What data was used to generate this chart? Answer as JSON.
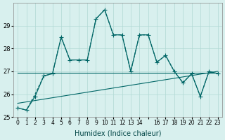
{
  "xlabel": "Humidex (Indice chaleur)",
  "ylabel": "",
  "background_color": "#d8f0ee",
  "grid_color": "#b0d8d4",
  "line_color": "#006666",
  "xlim": [
    -0.5,
    23.5
  ],
  "ylim": [
    25,
    30
  ],
  "yticks": [
    25,
    26,
    27,
    28,
    29
  ],
  "main_y": [
    25.4,
    25.3,
    25.9,
    26.8,
    26.9,
    28.5,
    27.5,
    27.5,
    27.5,
    29.3,
    29.7,
    28.6,
    28.6,
    27.0,
    28.6,
    28.6,
    27.4,
    27.7,
    27.0,
    26.5,
    26.9,
    25.9,
    27.0,
    26.9
  ],
  "reg_line_x": [
    0,
    23
  ],
  "reg_line_y": [
    25.6,
    27.0
  ],
  "mean_line_x": [
    0,
    23
  ],
  "mean_line_y": [
    26.95,
    26.95
  ],
  "dashed_y": [
    25.4,
    25.3,
    26.0,
    26.8,
    26.9,
    28.5,
    27.5,
    27.5,
    27.5,
    29.3,
    29.7,
    28.6,
    28.6,
    27.0,
    28.6,
    28.6,
    27.4,
    27.7,
    27.0,
    26.5,
    26.9,
    25.9,
    27.0,
    26.9
  ]
}
